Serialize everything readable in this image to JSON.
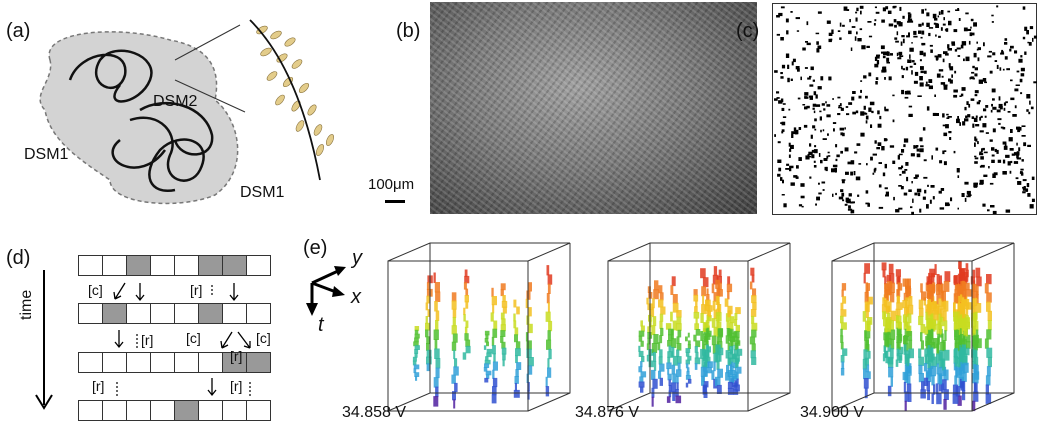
{
  "panels": {
    "a": {
      "label": "(a)",
      "dsm2": "DSM2",
      "dsm1_left": "DSM1",
      "dsm1_right": "DSM1"
    },
    "b": {
      "label": "(b)",
      "scale_bar": "100μm"
    },
    "c": {
      "label": "(c)"
    },
    "d": {
      "label": "(d)",
      "time_label": "time",
      "rows": [
        [
          0,
          0,
          1,
          0,
          0,
          1,
          1,
          0
        ],
        [
          0,
          1,
          0,
          0,
          0,
          1,
          0,
          0
        ],
        [
          0,
          0,
          0,
          0,
          0,
          0,
          1,
          1
        ],
        [
          0,
          0,
          0,
          0,
          1,
          0,
          0,
          0
        ]
      ],
      "annotations": {
        "row1_c": "[c]",
        "row1_r": "[r]",
        "row2_r": "[r]",
        "row2_c1": "[c]",
        "row2_c2": "[c]",
        "row2_r2": "[r]",
        "row3_r1": "[r]",
        "row3_r2": "[r]"
      }
    },
    "e": {
      "label": "(e)",
      "axes": {
        "y": "y",
        "x": "x",
        "t": "t"
      },
      "voltages": [
        "34.858 V",
        "34.876 V",
        "34.900 V"
      ]
    }
  },
  "colors": {
    "gray_fill": "#d3d3d3",
    "cell_dark": "#999999",
    "dot_gold": "#d4b86a"
  }
}
